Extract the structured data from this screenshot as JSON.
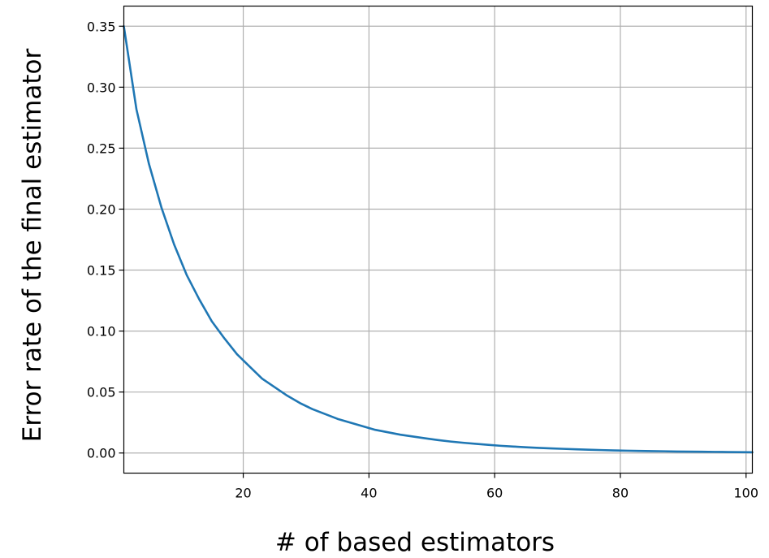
{
  "chart_data": {
    "type": "line",
    "title": "",
    "xlabel": "# of based estimators",
    "ylabel": "Error rate of the final estimator",
    "xlim": [
      1,
      101
    ],
    "ylim": [
      -0.0165,
      0.3665
    ],
    "grid": true,
    "x_ticks": [
      {
        "value": 20,
        "label": "20"
      },
      {
        "value": 40,
        "label": "40"
      },
      {
        "value": 60,
        "label": "60"
      },
      {
        "value": 80,
        "label": "80"
      },
      {
        "value": 100,
        "label": "100"
      }
    ],
    "y_ticks": [
      {
        "value": 0.0,
        "label": "0.00"
      },
      {
        "value": 0.05,
        "label": "0.05"
      },
      {
        "value": 0.1,
        "label": "0.10"
      },
      {
        "value": 0.15,
        "label": "0.15"
      },
      {
        "value": 0.2,
        "label": "0.20"
      },
      {
        "value": 0.25,
        "label": "0.25"
      },
      {
        "value": 0.3,
        "label": "0.30"
      },
      {
        "value": 0.35,
        "label": "0.35"
      }
    ],
    "series": [
      {
        "color": "#1f77b4",
        "x": [
          1,
          3,
          5,
          7,
          9,
          11,
          13,
          15,
          17,
          19,
          21,
          23,
          25,
          27,
          29,
          31,
          33,
          35,
          37,
          39,
          41,
          43,
          45,
          47,
          49,
          51,
          53,
          55,
          57,
          59,
          61,
          63,
          65,
          67,
          69,
          71,
          73,
          75,
          77,
          79,
          81,
          83,
          85,
          87,
          89,
          91,
          93,
          95,
          97,
          99,
          101
        ],
        "y": [
          0.35,
          0.282,
          0.237,
          0.201,
          0.171,
          0.146,
          0.126,
          0.108,
          0.094,
          0.081,
          0.071,
          0.061,
          0.054,
          0.047,
          0.041,
          0.036,
          0.032,
          0.028,
          0.025,
          0.022,
          0.019,
          0.017,
          0.015,
          0.0135,
          0.012,
          0.0106,
          0.0094,
          0.0084,
          0.0075,
          0.0067,
          0.0059,
          0.0053,
          0.0047,
          0.0042,
          0.0038,
          0.0034,
          0.003,
          0.0027,
          0.0024,
          0.0021,
          0.0019,
          0.0017,
          0.0015,
          0.0014,
          0.0012,
          0.0011,
          0.001,
          0.0009,
          0.0008,
          0.0007,
          0.0006
        ]
      }
    ]
  }
}
